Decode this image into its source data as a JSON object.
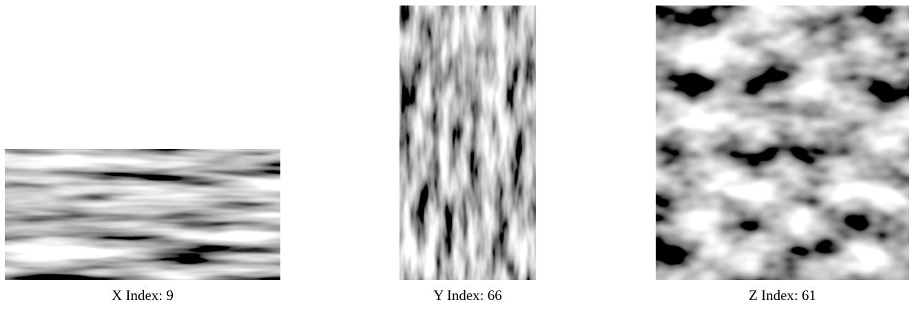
{
  "panels": [
    {
      "label": "X Index: 9"
    },
    {
      "label": "Y Index: 66"
    },
    {
      "label": "Z Index: 61"
    }
  ]
}
